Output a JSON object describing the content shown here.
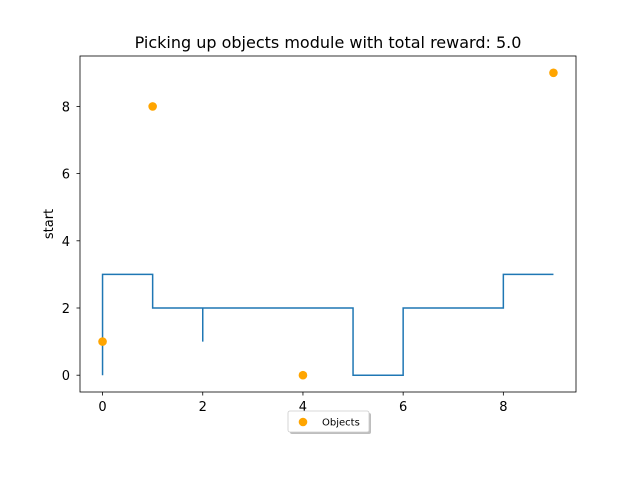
{
  "chart_data": {
    "type": "line",
    "title": "Picking up objects module with total reward: 5.0",
    "xlabel": "",
    "ylabel": "start",
    "xlim": [
      -0.45,
      9.45
    ],
    "ylim": [
      9.5,
      -0.5
    ],
    "y_inverted": true,
    "x_ticks": [
      0,
      2,
      4,
      6,
      8
    ],
    "y_ticks": [
      0,
      2,
      4,
      6,
      8
    ],
    "grid": false,
    "legend_placement": "bottom-center",
    "series": [
      {
        "name": "",
        "kind": "line",
        "color": "#1f77b4",
        "x": [
          0,
          0,
          1,
          1,
          2,
          2,
          2,
          5,
          5,
          6,
          6,
          8,
          8,
          9
        ],
        "y": [
          0,
          3,
          3,
          2,
          2,
          1,
          2,
          2,
          0,
          0,
          2,
          2,
          3,
          3
        ]
      },
      {
        "name": "Objects",
        "kind": "scatter",
        "color": "#ffa500",
        "x": [
          0,
          4,
          1,
          9
        ],
        "y": [
          1,
          0,
          8,
          9
        ]
      }
    ]
  }
}
